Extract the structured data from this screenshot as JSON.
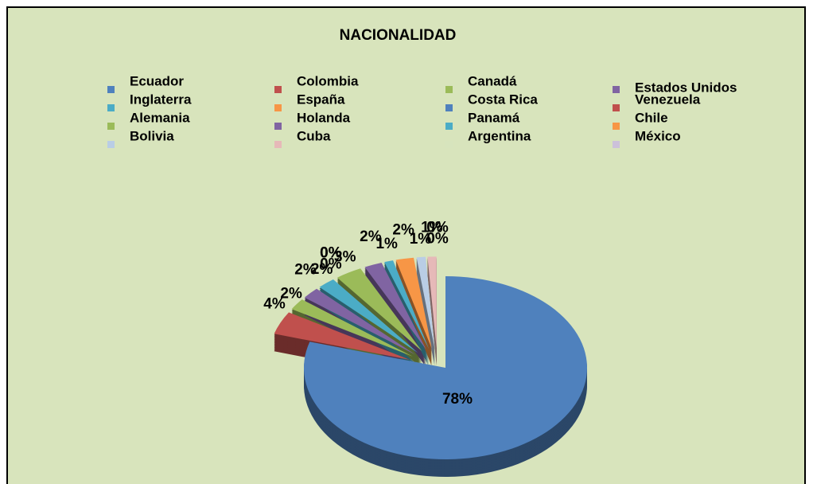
{
  "chart_data": {
    "type": "pie",
    "title": "NACIONALIDAD",
    "categories": [
      "Ecuador",
      "Colombia",
      "Canadá",
      "Estados Unidos",
      "Inglaterra",
      "España",
      "Costa Rica",
      "Venezuela",
      "Alemania",
      "Holanda",
      "Panamá",
      "Chile",
      "Bolivia",
      "Cuba",
      "Argentina",
      "México"
    ],
    "values": [
      78,
      4,
      2,
      2,
      2,
      0,
      0,
      0,
      3,
      2,
      1,
      2,
      1,
      1,
      0,
      0
    ],
    "value_labels": [
      "78%",
      "4%",
      "2%",
      "2%",
      "2%",
      "0%",
      "0%",
      "0%",
      "3%",
      "2%",
      "1%",
      "2%",
      "1%",
      "1%",
      "0%",
      "0%"
    ],
    "colors": [
      "#4f81bd",
      "#c0504d",
      "#9bbb59",
      "#8064a2",
      "#4bacc6",
      "#f79646",
      "#4f81bd",
      "#c0504d",
      "#9bbb59",
      "#8064a2",
      "#4bacc6",
      "#f79646",
      "#b9cde5",
      "#e6b9b8",
      "#d7e4bd",
      "#ccc1da"
    ],
    "legend": "top"
  }
}
